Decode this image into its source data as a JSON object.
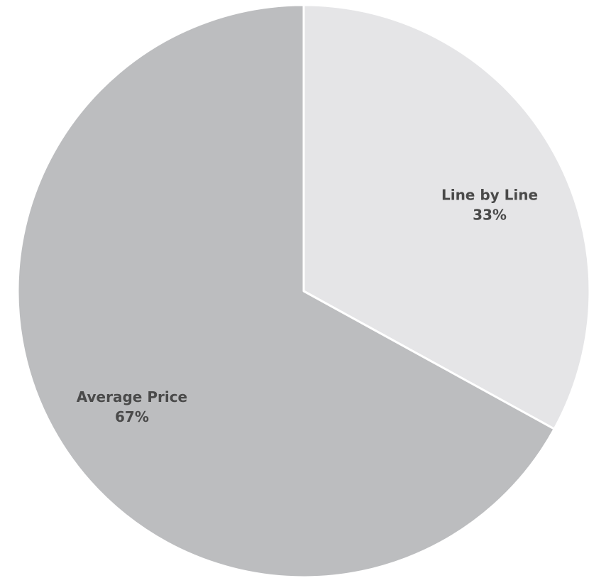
{
  "chart_data": {
    "type": "pie",
    "title": "",
    "slices": [
      {
        "label": "Line by Line",
        "value": 33,
        "percent_label": "33%",
        "color": "#e5e5e7"
      },
      {
        "label": "Average Price",
        "value": 67,
        "percent_label": "67%",
        "color": "#bcbdbf"
      }
    ],
    "start": "12 o'clock",
    "direction": "clockwise",
    "legend": "none",
    "slice_border_color": "#ffffff"
  }
}
